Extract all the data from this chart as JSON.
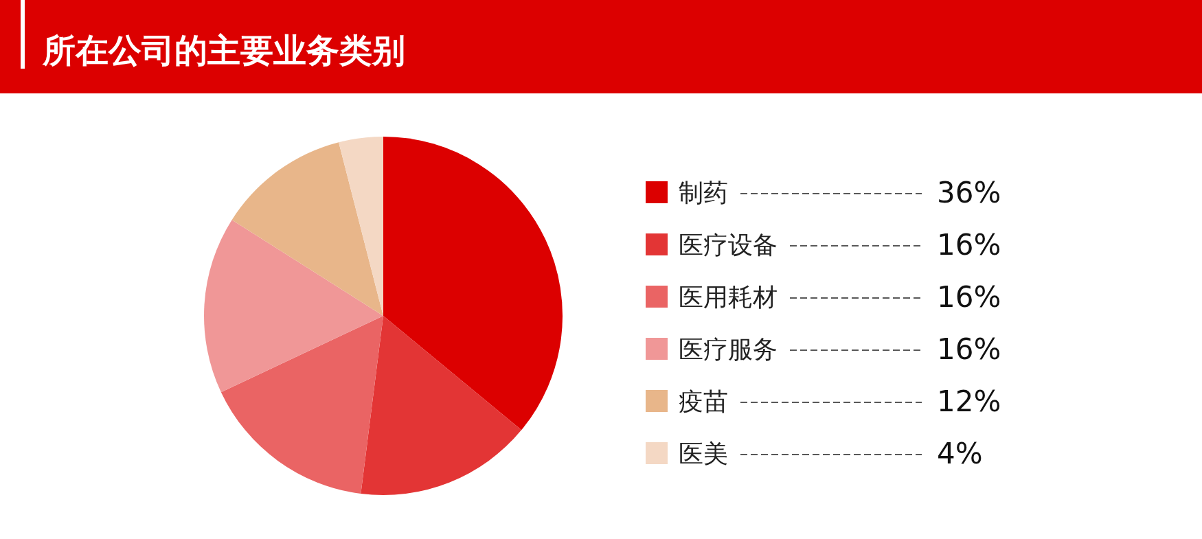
{
  "chart_data": {
    "type": "pie",
    "title": "所在公司的主要业务类别",
    "categories": [
      "制药",
      "医疗设备",
      "医用耗材",
      "医疗服务",
      "疫苗",
      "医美"
    ],
    "values": [
      36,
      16,
      16,
      16,
      12,
      4
    ],
    "colors": [
      "#dc0000",
      "#e33535",
      "#ea6464",
      "#f09797",
      "#e8b68a",
      "#f4d8c4"
    ],
    "value_labels": [
      "36%",
      "16%",
      "16%",
      "16%",
      "12%",
      "4%"
    ],
    "legend": "right"
  }
}
